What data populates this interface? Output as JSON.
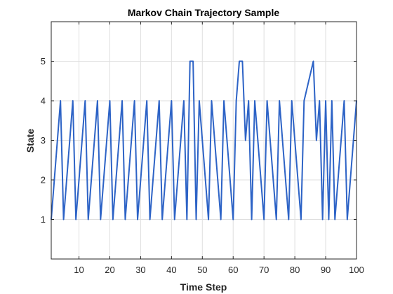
{
  "chart_data": {
    "type": "line",
    "title": "Markov Chain Trajectory Sample",
    "xlabel": "Time Step",
    "ylabel": "State",
    "xlim": [
      1,
      100
    ],
    "ylim": [
      0,
      6
    ],
    "xticks": [
      10,
      20,
      30,
      40,
      50,
      60,
      70,
      80,
      90,
      100
    ],
    "yticks": [
      1,
      2,
      3,
      4,
      5
    ],
    "grid": true,
    "line_color": "#2d63c6",
    "series": [
      {
        "x": [
          1,
          4,
          5,
          8,
          9,
          12,
          13,
          16,
          17,
          20,
          21,
          24,
          25,
          28,
          29,
          32,
          33,
          36,
          37,
          40,
          41,
          44,
          45,
          46,
          47,
          48,
          49,
          52,
          53,
          56,
          57,
          60,
          61,
          62,
          63,
          64,
          65,
          66,
          67,
          70,
          71,
          74,
          75,
          78,
          79,
          82,
          83,
          86,
          87,
          88,
          89,
          90,
          91,
          92,
          93,
          96,
          97,
          100
        ],
        "y": [
          1,
          4,
          1,
          4,
          1,
          4,
          1,
          4,
          1,
          4,
          1,
          4,
          1,
          4,
          1,
          4,
          1,
          4,
          1,
          4,
          1,
          4,
          1,
          5,
          5,
          1,
          4,
          1,
          4,
          1,
          4,
          1,
          4,
          5,
          5,
          3,
          4,
          1,
          4,
          1,
          4,
          1,
          4,
          1,
          4,
          1,
          4,
          5,
          3,
          4,
          1,
          4,
          1,
          4,
          1,
          4,
          1,
          4
        ]
      }
    ]
  }
}
